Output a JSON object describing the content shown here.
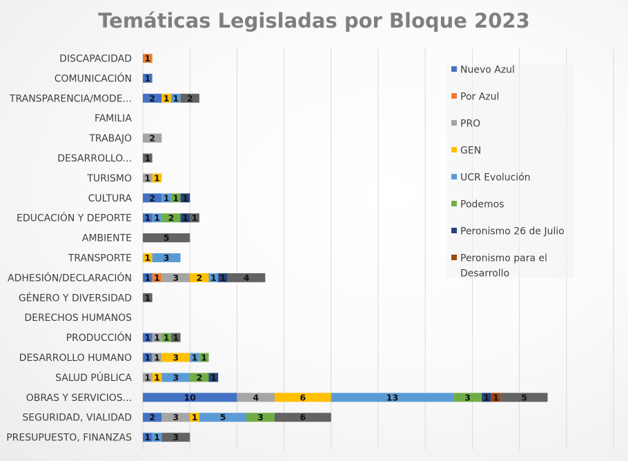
{
  "chart_data": {
    "type": "bar",
    "orientation": "horizontal",
    "stacked": true,
    "title": "Temáticas Legisladas por Bloque 2023",
    "xlim": [
      0,
      50
    ],
    "grid": true,
    "legend_position": "right",
    "categories": [
      "DISCAPACIDAD",
      "COMUNICACIÓN",
      "TRANSPARENCIA/MODE...",
      "FAMILIA",
      "TRABAJO",
      "DESARROLLO...",
      "TURISMO",
      "CULTURA",
      "EDUCACIÓN Y DEPORTE",
      "AMBIENTE",
      "TRANSPORTE",
      "ADHESIÓN/DECLARACIÓN",
      "GÉNERO Y DIVERSIDAD",
      "DERECHOS HUMANOS",
      "PRODUCCIÓN",
      "DESARROLLO HUMANO",
      "SALUD PÚBLICA",
      "OBRAS Y SERVICIOS...",
      "SEGURIDAD, VIALIDAD",
      "PRESUPUESTO, FINANZAS"
    ],
    "series": [
      {
        "name": "Nuevo Azul",
        "color": "#4472c4",
        "values": [
          0,
          1,
          2,
          0,
          0,
          0,
          0,
          2,
          1,
          0,
          0,
          1,
          0,
          0,
          1,
          1,
          0,
          10,
          2,
          1
        ]
      },
      {
        "name": "Por Azul",
        "color": "#ed7d31",
        "values": [
          1,
          0,
          0,
          0,
          0,
          0,
          0,
          0,
          0,
          0,
          0,
          1,
          0,
          0,
          0,
          0,
          0,
          0,
          0,
          0
        ]
      },
      {
        "name": "PRO",
        "color": "#a5a5a5",
        "values": [
          0,
          0,
          0,
          0,
          2,
          0,
          1,
          0,
          0,
          0,
          0,
          3,
          0,
          0,
          1,
          1,
          1,
          4,
          3,
          0
        ]
      },
      {
        "name": "GEN",
        "color": "#ffc000",
        "values": [
          0,
          0,
          1,
          0,
          0,
          0,
          1,
          0,
          0,
          0,
          1,
          2,
          0,
          0,
          0,
          3,
          1,
          6,
          1,
          0
        ]
      },
      {
        "name": "UCR Evolución",
        "color": "#5b9bd5",
        "values": [
          0,
          0,
          1,
          0,
          0,
          0,
          0,
          1,
          1,
          0,
          3,
          1,
          0,
          0,
          0,
          1,
          3,
          13,
          5,
          1
        ]
      },
      {
        "name": "Podemos",
        "color": "#70ad47",
        "values": [
          0,
          0,
          0,
          0,
          0,
          0,
          0,
          1,
          2,
          0,
          0,
          0,
          0,
          0,
          1,
          1,
          2,
          3,
          3,
          0
        ]
      },
      {
        "name": "Peronismo 26 de Julio",
        "color": "#264478",
        "values": [
          0,
          0,
          0,
          0,
          0,
          0,
          0,
          1,
          1,
          0,
          0,
          1,
          0,
          0,
          0,
          0,
          1,
          1,
          0,
          0
        ]
      },
      {
        "name": "Peronismo para el Desarrollo",
        "color": "#9e480e",
        "values": [
          0,
          0,
          0,
          0,
          0,
          0,
          0,
          0,
          0,
          0,
          0,
          0,
          0,
          0,
          0,
          0,
          0,
          1,
          0,
          0
        ]
      },
      {
        "name": "",
        "color": "#636363",
        "values": [
          0,
          0,
          2,
          0,
          0,
          1,
          0,
          0,
          1,
          5,
          0,
          4,
          1,
          0,
          1,
          0,
          0,
          5,
          6,
          3
        ]
      }
    ]
  }
}
